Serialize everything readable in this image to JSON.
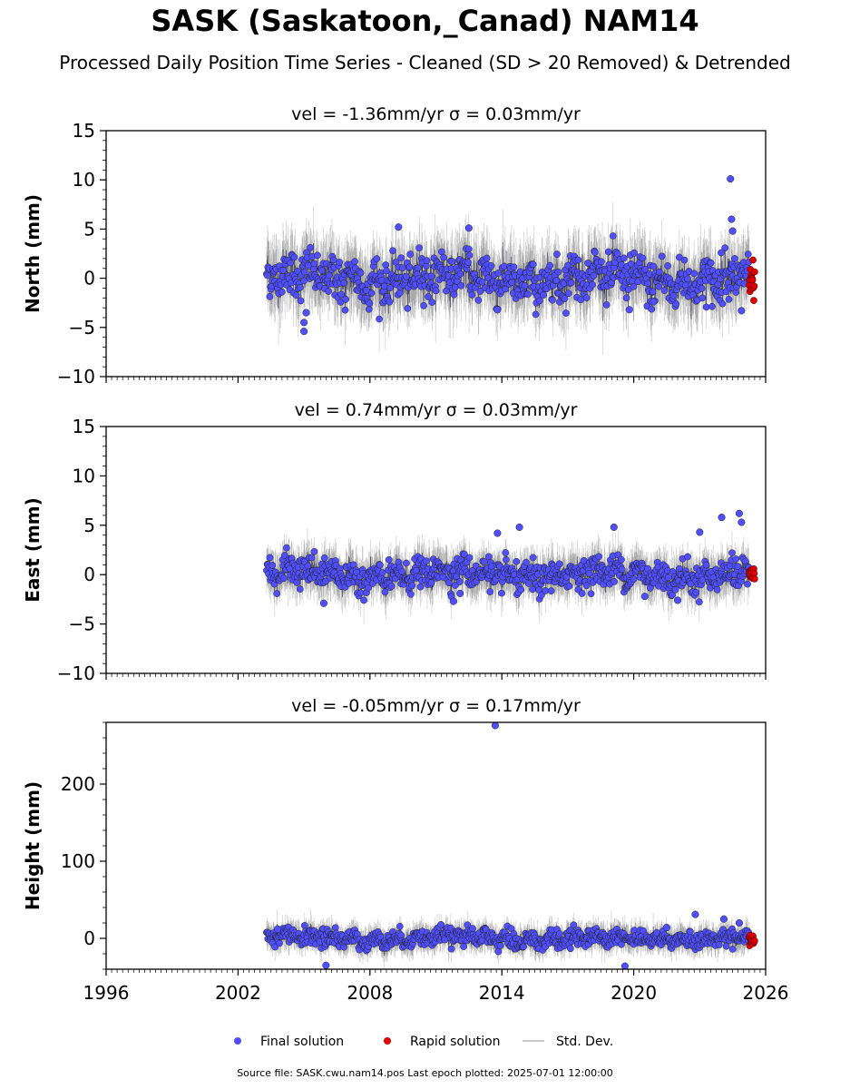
{
  "title": "SASK (Saskatoon,_Canad) NAM14",
  "subtitle": "Processed Daily Position Time Series - Cleaned (SD > 20 Removed) & Detrended",
  "footer": "Source file: SASK.cwu.nam14.pos  Last epoch plotted: 2025-07-01 12:00:00",
  "colors": {
    "final": "#4f4fff",
    "rapid": "#e00000",
    "stddev": "#b8b8b8"
  },
  "chart_data": [
    {
      "type": "scatter",
      "title": "vel = -1.36mm/yr   σ = 0.03mm/yr",
      "ylabel": "North (mm)",
      "xlim": [
        1996,
        2026
      ],
      "ylim": [
        -10,
        15
      ],
      "yticks": [
        -10,
        -5,
        0,
        5,
        10,
        15
      ],
      "xticks": [
        1996,
        2002,
        2008,
        2014,
        2020,
        2026
      ],
      "grid": false,
      "final_range": [
        2003.3,
        2025.25
      ],
      "rapid_range": [
        2025.25,
        2025.5
      ],
      "scatter_sd": 1.4,
      "outliers": [
        {
          "x": 2024.4,
          "y": 10.1
        },
        {
          "x": 2024.45,
          "y": 6.0
        },
        {
          "x": 2024.5,
          "y": 4.8
        },
        {
          "x": 2005.0,
          "y": -5.4
        },
        {
          "x": 2005.0,
          "y": -4.5
        },
        {
          "x": 2005.1,
          "y": -3.5
        },
        {
          "x": 2009.3,
          "y": 5.2
        },
        {
          "x": 2012.5,
          "y": 5.1
        },
        {
          "x": 2013.8,
          "y": -3.2
        },
        {
          "x": 2019.8,
          "y": -3.2
        },
        {
          "x": 2024.9,
          "y": -3.3
        },
        {
          "x": 2020.9,
          "y": -2.4
        }
      ]
    },
    {
      "type": "scatter",
      "title": "vel = 0.74mm/yr   σ = 0.03mm/yr",
      "ylabel": "East (mm)",
      "xlim": [
        1996,
        2026
      ],
      "ylim": [
        -10,
        15
      ],
      "yticks": [
        -10,
        -5,
        0,
        5,
        10,
        15
      ],
      "xticks": [
        1996,
        2002,
        2008,
        2014,
        2020,
        2026
      ],
      "grid": false,
      "final_range": [
        2003.3,
        2025.25
      ],
      "rapid_range": [
        2025.25,
        2025.5
      ],
      "scatter_sd": 0.9,
      "outliers": [
        {
          "x": 2024.8,
          "y": 6.2
        },
        {
          "x": 2024.0,
          "y": 5.8
        },
        {
          "x": 2024.9,
          "y": 5.3
        },
        {
          "x": 2014.8,
          "y": 4.8
        },
        {
          "x": 2013.8,
          "y": 4.2
        },
        {
          "x": 2019.1,
          "y": 4.8
        },
        {
          "x": 2005.9,
          "y": -2.9
        },
        {
          "x": 2011.8,
          "y": -2.7
        },
        {
          "x": 2020.5,
          "y": -2.2
        },
        {
          "x": 2022.0,
          "y": -2.6
        },
        {
          "x": 2012.1,
          "y": -1.9
        },
        {
          "x": 2023.0,
          "y": 4.3
        }
      ]
    },
    {
      "type": "scatter",
      "title": "vel = -0.05mm/yr   σ = 0.17mm/yr",
      "ylabel": "Height (mm)",
      "xlim": [
        1996,
        2026
      ],
      "ylim": [
        -40,
        280
      ],
      "yticks": [
        0,
        100,
        200
      ],
      "xticks": [
        1996,
        2002,
        2008,
        2014,
        2020,
        2026
      ],
      "grid": false,
      "final_range": [
        2003.3,
        2025.25
      ],
      "rapid_range": [
        2025.25,
        2025.5
      ],
      "scatter_sd": 7,
      "outliers": [
        {
          "x": 2013.7,
          "y": 276
        },
        {
          "x": 2022.8,
          "y": 31
        },
        {
          "x": 2024.1,
          "y": 25
        },
        {
          "x": 2024.8,
          "y": 20
        },
        {
          "x": 2006.0,
          "y": -35
        },
        {
          "x": 2019.6,
          "y": -36
        },
        {
          "x": 2021.5,
          "y": 14
        },
        {
          "x": 2003.8,
          "y": 12
        }
      ]
    }
  ],
  "legend": {
    "placement": "bottom-center",
    "items": [
      {
        "label": "Final solution",
        "kind": "final"
      },
      {
        "label": "Rapid solution",
        "kind": "rapid"
      },
      {
        "label": "Std. Dev.",
        "kind": "stddev"
      }
    ]
  }
}
